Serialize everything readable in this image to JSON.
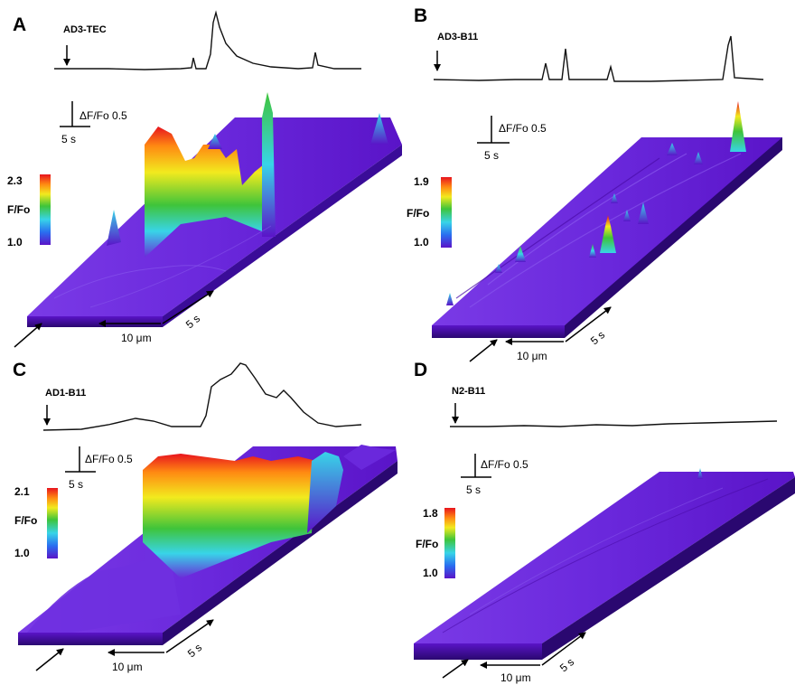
{
  "panels": [
    {
      "letter": "A",
      "condition": "AD3-TEC",
      "scale_y": "ΔF/Fo 0.5",
      "scale_x": "5 s",
      "cbar_max": "2.3",
      "cbar_label": "F/Fo",
      "cbar_min": "1.0",
      "axis_space": "10 μm",
      "axis_time": "5 s"
    },
    {
      "letter": "B",
      "condition": "AD3-B11",
      "scale_y": "ΔF/Fo 0.5",
      "scale_x": "5 s",
      "cbar_max": "1.9",
      "cbar_label": "F/Fo",
      "cbar_min": "1.0",
      "axis_space": "10 μm",
      "axis_time": "5 s"
    },
    {
      "letter": "C",
      "condition": "AD1-B11",
      "scale_y": "ΔF/Fo 0.5",
      "scale_x": "5 s",
      "cbar_max": "2.1",
      "cbar_label": "F/Fo",
      "cbar_min": "1.0",
      "axis_space": "10 μm",
      "axis_time": "5 s"
    },
    {
      "letter": "D",
      "condition": "N2-B11",
      "scale_y": "ΔF/Fo 0.5",
      "scale_x": "5 s",
      "cbar_max": "1.8",
      "cbar_label": "F/Fo",
      "cbar_min": "1.0",
      "axis_space": "10 μm",
      "axis_time": "5 s"
    }
  ],
  "colors": {
    "violet": "#5a14c8",
    "blue": "#2a6ef0",
    "cyan": "#38d4e8",
    "green": "#3fc43a",
    "yellow": "#f2ea1e",
    "orange": "#ff8a12",
    "red": "#e8141e"
  }
}
